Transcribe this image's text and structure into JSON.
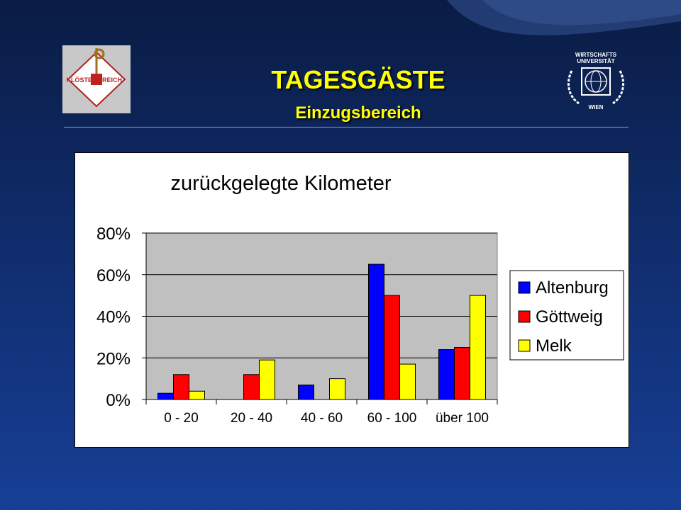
{
  "header": {
    "title": "TAGESGÄSTE",
    "subtitle": "Einzugsbereich",
    "logo_left_text_a": "KLÖSTER",
    "logo_left_text_b": "REICH",
    "logo_right_line1": "WIRTSCHAFTS",
    "logo_right_line2": "UNIVERSITÄT",
    "logo_right_line3": "WIEN"
  },
  "colors": {
    "title": "#ffff00",
    "plot_bg": "#c0c0c0",
    "altenburg": "#0000ff",
    "goettweig": "#ff0000",
    "melk": "#ffff00"
  },
  "chart_data": {
    "type": "bar",
    "title": "zurückgelegte Kilometer",
    "categories": [
      "0 - 20",
      "20 - 40",
      "40 - 60",
      "60 - 100",
      "über 100"
    ],
    "series": [
      {
        "name": "Altenburg",
        "color": "#0000ff",
        "values": [
          3,
          0,
          7,
          65,
          24
        ]
      },
      {
        "name": "Göttweig",
        "color": "#ff0000",
        "values": [
          12,
          12,
          0,
          50,
          25
        ]
      },
      {
        "name": "Melk",
        "color": "#ffff00",
        "values": [
          4,
          19,
          10,
          17,
          50
        ]
      }
    ],
    "yticks": [
      "0%",
      "20%",
      "40%",
      "60%",
      "80%"
    ],
    "ylim": [
      0,
      80
    ],
    "grid": true,
    "legend": "right"
  }
}
